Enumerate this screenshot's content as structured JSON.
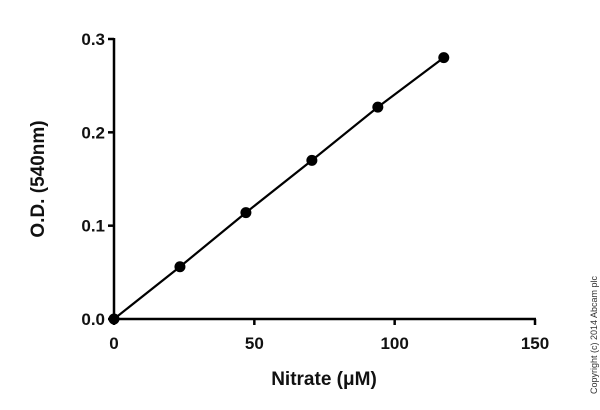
{
  "chart_data": {
    "type": "line",
    "xlabel": "Nitrate (μM)",
    "ylabel": "O.D. (540nm)",
    "xlim": [
      0,
      150
    ],
    "ylim": [
      0,
      0.3
    ],
    "xticks": [
      "0",
      "50",
      "100",
      "150"
    ],
    "yticks": [
      "0.0",
      "0.1",
      "0.2",
      "0.3"
    ],
    "grid": false,
    "series": [
      {
        "x": [
          0,
          23.5,
          47,
          70.5,
          94,
          117.5
        ],
        "y": [
          0.0,
          0.056,
          0.114,
          0.17,
          0.227,
          0.28
        ],
        "color": "#000000",
        "marker": "circle"
      }
    ]
  },
  "copyright": "Copyright (c) 2014 Abcam plc"
}
